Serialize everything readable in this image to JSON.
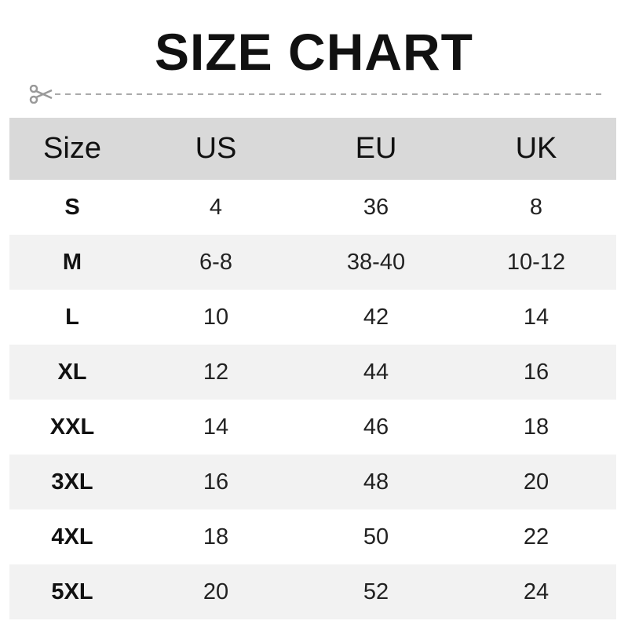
{
  "title": "SIZE CHART",
  "cut_icon": "scissors-icon",
  "colors": {
    "header_bg": "#d9d9d9",
    "alt_row_bg": "#f2f2f2",
    "divider": "#aaaaaa"
  },
  "table": {
    "headers": [
      "Size",
      "US",
      "EU",
      "UK"
    ],
    "rows": [
      [
        "S",
        "4",
        "36",
        "8"
      ],
      [
        "M",
        "6-8",
        "38-40",
        "10-12"
      ],
      [
        "L",
        "10",
        "42",
        "14"
      ],
      [
        "XL",
        "12",
        "44",
        "16"
      ],
      [
        "XXL",
        "14",
        "46",
        "18"
      ],
      [
        "3XL",
        "16",
        "48",
        "20"
      ],
      [
        "4XL",
        "18",
        "50",
        "22"
      ],
      [
        "5XL",
        "20",
        "52",
        "24"
      ]
    ]
  }
}
